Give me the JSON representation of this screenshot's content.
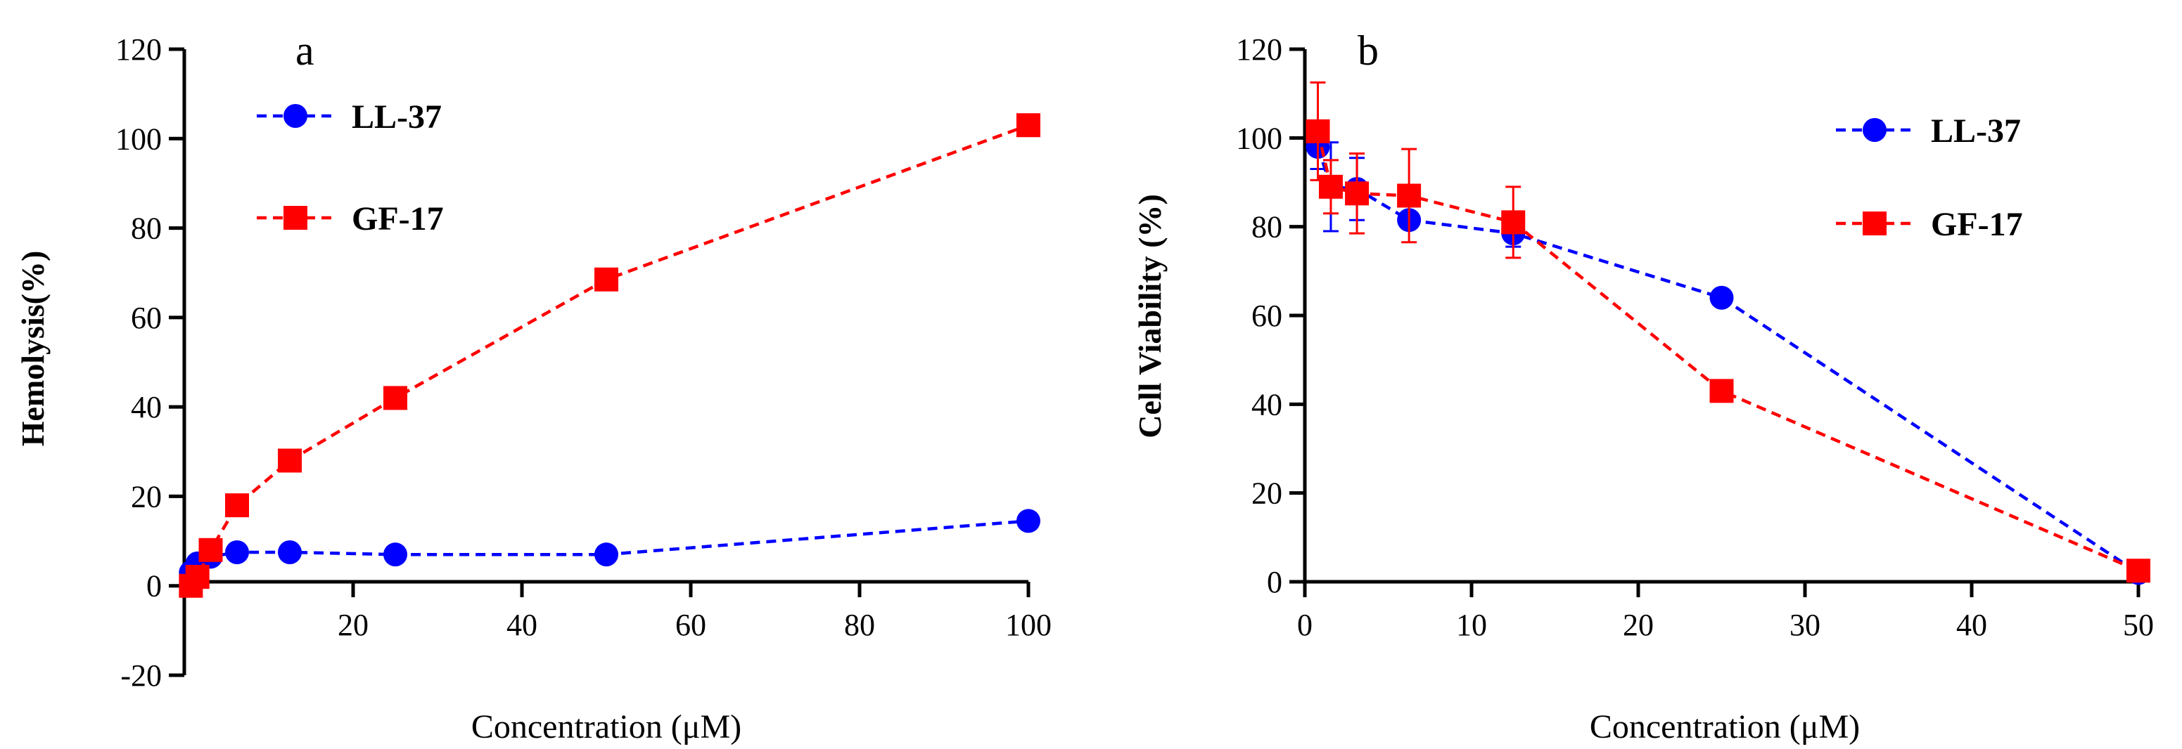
{
  "chart_data": [
    {
      "type": "line",
      "panel_label": "a",
      "title": "",
      "xlabel": "Concentration (μM)",
      "ylabel": "Hemolysis(%)",
      "xlim": [
        0,
        100
      ],
      "ylim": [
        -20,
        120
      ],
      "xticks": [
        "20",
        "40",
        "60",
        "80",
        "100"
      ],
      "yticks": [
        "-20",
        "0",
        "20",
        "40",
        "60",
        "80",
        "100",
        "120"
      ],
      "legend_position": "top-left",
      "series": [
        {
          "name": "LL-37",
          "marker": "circle",
          "color": "#0000ff",
          "x": [
            0.78,
            1.56,
            3.125,
            6.25,
            12.5,
            25,
            50,
            100
          ],
          "y": [
            3,
            5,
            6.5,
            7.5,
            7.5,
            7,
            7,
            14.5
          ]
        },
        {
          "name": "GF-17",
          "marker": "square",
          "color": "#ff0000",
          "x": [
            0.78,
            1.56,
            3.125,
            6.25,
            12.5,
            25,
            50,
            100
          ],
          "y": [
            0,
            2,
            8,
            18,
            28,
            42,
            68.5,
            103
          ]
        }
      ]
    },
    {
      "type": "line",
      "panel_label": "b",
      "title": "",
      "xlabel": "Concentration (μM)",
      "ylabel": "Cell Viability (%)",
      "xlim": [
        0,
        50
      ],
      "ylim": [
        0,
        120
      ],
      "xticks": [
        "0",
        "10",
        "20",
        "30",
        "40",
        "50"
      ],
      "yticks": [
        "0",
        "20",
        "40",
        "60",
        "80",
        "100",
        "120"
      ],
      "legend_position": "top-right",
      "series": [
        {
          "name": "LL-37",
          "marker": "circle",
          "color": "#0000ff",
          "x": [
            0.78,
            1.56,
            3.125,
            6.25,
            12.5,
            25,
            50
          ],
          "y": [
            98,
            89,
            88.5,
            81.5,
            78.5,
            64,
            2
          ],
          "error": [
            5,
            10,
            7,
            0,
            3,
            0,
            0
          ]
        },
        {
          "name": "GF-17",
          "marker": "square",
          "color": "#ff0000",
          "x": [
            0.78,
            1.56,
            3.125,
            6.25,
            12.5,
            25,
            50
          ],
          "y": [
            101.5,
            89,
            87.5,
            87,
            81,
            43,
            2.5
          ],
          "error": [
            11,
            6,
            9,
            10.5,
            8,
            0,
            0
          ]
        }
      ]
    }
  ]
}
